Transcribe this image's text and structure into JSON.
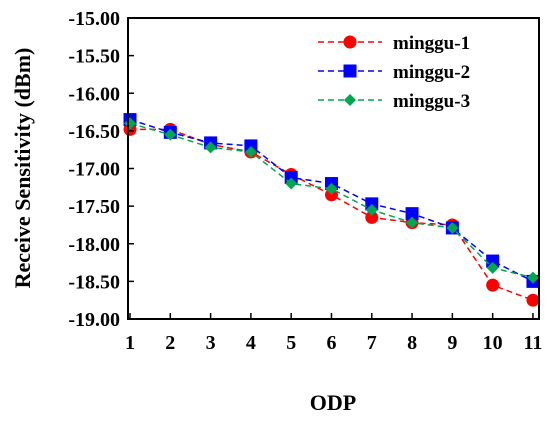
{
  "chart_data": {
    "type": "line",
    "xlabel": "ODP",
    "ylabel": "Receive Sensitivity (dBm)",
    "x": [
      1,
      2,
      3,
      4,
      5,
      6,
      7,
      8,
      9,
      10,
      11
    ],
    "x_ticks": [
      "1",
      "2",
      "3",
      "4",
      "5",
      "6",
      "7",
      "8",
      "9",
      "10",
      "11"
    ],
    "ylim": [
      -19.0,
      -15.0
    ],
    "y_ticks": [
      "-15.00",
      "-15.50",
      "-16.00",
      "-16.50",
      "-17.00",
      "-17.50",
      "-18.00",
      "-18.50",
      "-19.00"
    ],
    "grid": false,
    "legend_position": "top-right",
    "series": [
      {
        "name": "minggu-1",
        "color": "#ff0000",
        "marker": "circle",
        "values": [
          -16.48,
          -16.48,
          -16.68,
          -16.78,
          -17.08,
          -17.35,
          -17.65,
          -17.72,
          -17.75,
          -18.55,
          -18.75
        ]
      },
      {
        "name": "minggu-2",
        "color": "#0000ff",
        "marker": "square",
        "values": [
          -16.35,
          -16.52,
          -16.66,
          -16.7,
          -17.12,
          -17.2,
          -17.47,
          -17.6,
          -17.79,
          -18.23,
          -18.5
        ]
      },
      {
        "name": "minggu-3",
        "color": "#00a651",
        "marker": "diamond",
        "values": [
          -16.4,
          -16.55,
          -16.72,
          -16.78,
          -17.2,
          -17.27,
          -17.55,
          -17.72,
          -17.79,
          -18.32,
          -18.45
        ]
      }
    ]
  }
}
